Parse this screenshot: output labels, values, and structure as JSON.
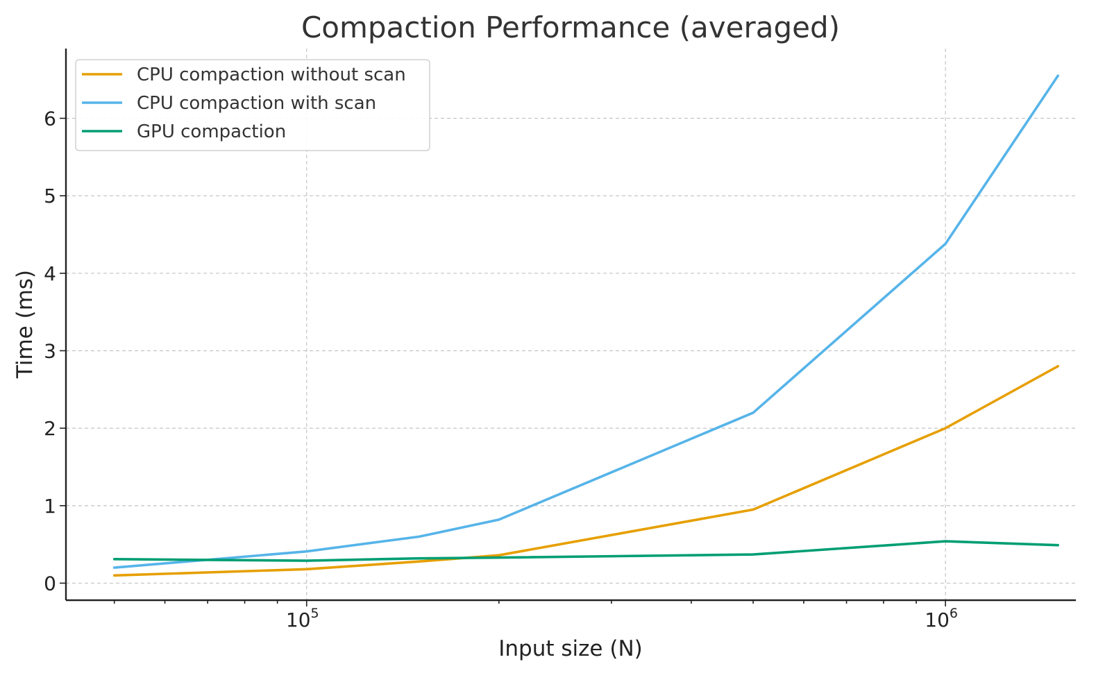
{
  "chart_data": {
    "type": "line",
    "title": "Compaction Performance (averaged)",
    "xlabel": "Input size (N)",
    "ylabel": "Time (ms)",
    "xscale": "log",
    "xlim": [
      42000,
      1600000
    ],
    "ylim": [
      -0.22,
      6.9
    ],
    "x_ticks": [
      {
        "value": 100000,
        "base": "10",
        "exp": "5"
      },
      {
        "value": 1000000,
        "base": "10",
        "exp": "6"
      }
    ],
    "y_ticks": [
      0,
      1,
      2,
      3,
      4,
      5,
      6
    ],
    "grid": true,
    "legend_position": "top-left",
    "x": [
      50000,
      100000,
      150000,
      200000,
      500000,
      1000000,
      1500000
    ],
    "series": [
      {
        "name": "CPU compaction without scan",
        "color": "#E69F00",
        "values": [
          0.1,
          0.18,
          0.28,
          0.36,
          0.95,
          2.0,
          2.8
        ]
      },
      {
        "name": "CPU compaction with scan",
        "color": "#56B4E9",
        "values": [
          0.2,
          0.41,
          0.6,
          0.82,
          2.2,
          4.38,
          6.55
        ]
      },
      {
        "name": "GPU compaction",
        "color": "#009E73",
        "values": [
          0.31,
          0.29,
          0.32,
          0.33,
          0.37,
          0.54,
          0.49
        ]
      }
    ]
  }
}
